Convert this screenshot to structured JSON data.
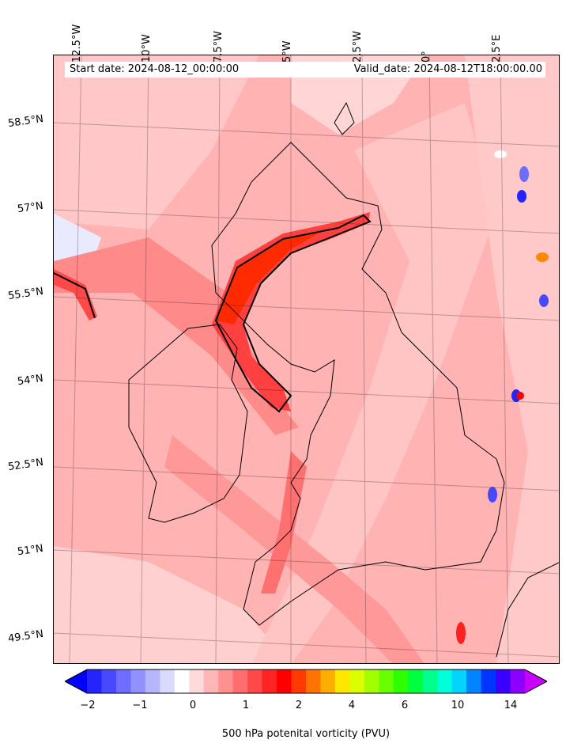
{
  "map": {
    "start_label": "Start date: 2024-08-12_00:00:00",
    "valid_label": "Valid_date: 2024-08-12T18:00:00.00",
    "longitude_labels": [
      "12.5°W",
      "10°W",
      "7.5°W",
      "5°W",
      "2.5°W",
      "0°",
      "2.5°E"
    ],
    "latitude_labels": [
      "58.5°N",
      "57°N",
      "55.5°N",
      "54°N",
      "52.5°N",
      "51°N",
      "49.5°N"
    ],
    "background_color": "#ffb3b3",
    "coastline_color": "#000000"
  },
  "colorbar": {
    "label": "500 hPa potenital vorticity (PVU)",
    "tick_labels": [
      "−2",
      "−1",
      "0",
      "1",
      "2",
      "4",
      "6",
      "10",
      "14"
    ],
    "colors": [
      "#0000ff",
      "#2424ff",
      "#4848ff",
      "#6d6dff",
      "#9191ff",
      "#b6b6ff",
      "#dadaff",
      "#ffffff",
      "#ffdada",
      "#ffb6b6",
      "#ff9191",
      "#ff6d6d",
      "#ff4848",
      "#ff2424",
      "#ff0000",
      "#ff3a00",
      "#ff7400",
      "#ffae00",
      "#ffe800",
      "#dcff00",
      "#a2ff00",
      "#68ff00",
      "#2eff00",
      "#00ff3c",
      "#00ff8c",
      "#00ffd8",
      "#00d4ff",
      "#0084ff",
      "#0034ff",
      "#3a00ff",
      "#8c00ff",
      "#c800ff"
    ]
  }
}
